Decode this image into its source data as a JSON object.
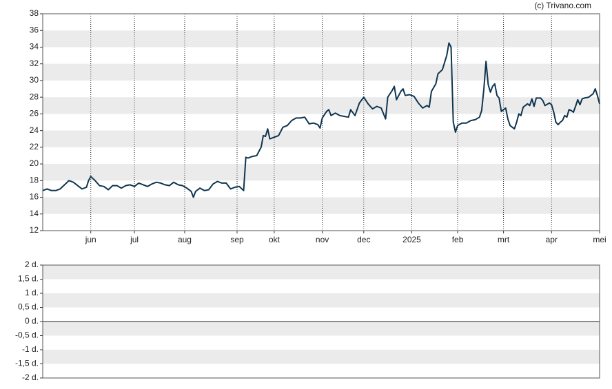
{
  "chart_data": [
    {
      "type": "line",
      "annotation": "(c) Trivano.com",
      "x": [
        0,
        2,
        4,
        6,
        8,
        10,
        12,
        14,
        16,
        18,
        20,
        21,
        22,
        24,
        26,
        28,
        30,
        32,
        34,
        36,
        38,
        40,
        42,
        44,
        46,
        48,
        50,
        52,
        54,
        56,
        58,
        60,
        62,
        64,
        66,
        68,
        69,
        70,
        72,
        74,
        76,
        78,
        80,
        82,
        84,
        86,
        88,
        90,
        92,
        93,
        94,
        96,
        98,
        100,
        101,
        102,
        103,
        104,
        106,
        108,
        110,
        112,
        114,
        116,
        118,
        120,
        122,
        124,
        126,
        127,
        128,
        130,
        131,
        132,
        134,
        136,
        138,
        140,
        141,
        143,
        145,
        147,
        149,
        151,
        153,
        155,
        157,
        158,
        160,
        161,
        162,
        164,
        165,
        166,
        168,
        170,
        172,
        174,
        176,
        177,
        178,
        180,
        181,
        183,
        185,
        186,
        187,
        188,
        189,
        190,
        192,
        194,
        196,
        198,
        200,
        201,
        202,
        203,
        204,
        205,
        206,
        207,
        208,
        209,
        210,
        211,
        212,
        213,
        214,
        215,
        216,
        217,
        218,
        219,
        220,
        222,
        223,
        224,
        225,
        226,
        228,
        229,
        230,
        232,
        233,
        234,
        235,
        236,
        237,
        238,
        239,
        240,
        241,
        242,
        243,
        244,
        245,
        246,
        247,
        248,
        250,
        251,
        252,
        253,
        254,
        255
      ],
      "color": "#0f3550",
      "values": [
        16.8,
        17.0,
        16.8,
        16.8,
        17.0,
        17.5,
        18.0,
        17.8,
        17.4,
        17.0,
        17.2,
        18.0,
        18.5,
        18.0,
        17.4,
        17.3,
        16.9,
        17.4,
        17.4,
        17.1,
        17.4,
        17.5,
        17.3,
        17.7,
        17.5,
        17.3,
        17.6,
        17.8,
        17.7,
        17.5,
        17.4,
        17.8,
        17.5,
        17.4,
        17.1,
        16.7,
        16.0,
        16.7,
        17.1,
        16.8,
        16.9,
        17.6,
        17.9,
        17.7,
        17.7,
        17.0,
        17.2,
        17.3,
        16.8,
        20.8,
        20.7,
        20.9,
        21.0,
        22.0,
        23.4,
        23.3,
        24.2,
        23.0,
        23.2,
        23.4,
        24.4,
        24.6,
        25.2,
        25.5,
        25.5,
        25.6,
        24.8,
        24.9,
        24.7,
        24.3,
        25.5,
        26.3,
        26.5,
        25.8,
        26.1,
        25.8,
        25.7,
        25.6,
        26.5,
        25.8,
        27.3,
        28.0,
        27.2,
        26.6,
        26.9,
        26.7,
        25.4,
        28.0,
        28.8,
        29.3,
        27.7,
        28.7,
        29.0,
        28.2,
        28.3,
        28.1,
        27.3,
        26.7,
        27.0,
        26.8,
        28.7,
        29.6,
        30.8,
        31.3,
        33.0,
        34.5,
        34.0,
        25.0,
        23.8,
        24.6,
        24.9,
        24.9,
        25.2,
        25.3,
        25.6,
        26.4,
        29.0,
        32.3,
        29.5,
        28.6,
        29.3,
        29.6,
        28.2,
        27.9,
        26.3,
        26.5,
        26.7,
        25.4,
        24.6,
        24.4,
        24.2,
        25.0,
        26.0,
        25.8,
        26.8,
        27.2,
        27.0,
        27.8,
        26.9,
        27.9,
        27.9,
        27.6,
        27.0,
        27.3,
        27.1,
        26.2,
        25.0,
        24.7,
        25.0,
        25.2,
        25.8,
        25.6,
        26.5,
        26.4,
        26.2,
        26.9,
        27.7,
        27.1,
        27.8,
        27.9,
        28.0,
        28.2,
        28.4,
        29.0,
        28.2,
        27.2
      ],
      "xlim": [
        0,
        255
      ],
      "xticks": [
        {
          "value": 22,
          "label": "jun"
        },
        {
          "value": 42,
          "label": "jul"
        },
        {
          "value": 65,
          "label": "aug"
        },
        {
          "value": 89,
          "label": "sep"
        },
        {
          "value": 106,
          "label": "okt"
        },
        {
          "value": 128,
          "label": "nov"
        },
        {
          "value": 147,
          "label": "dec"
        },
        {
          "value": 169,
          "label": "2025"
        },
        {
          "value": 190,
          "label": "feb"
        },
        {
          "value": 211,
          "label": "mrt"
        },
        {
          "value": 233,
          "label": "apr"
        },
        {
          "value": 255,
          "label": "mei"
        }
      ],
      "ylim": [
        12,
        38
      ],
      "yticks": [
        12,
        14,
        16,
        18,
        20,
        22,
        24,
        26,
        28,
        30,
        32,
        34,
        36,
        38
      ],
      "grid": true
    },
    {
      "type": "bar",
      "ylim": [
        -2,
        2
      ],
      "yticks": [
        {
          "value": 2,
          "label": "2 d."
        },
        {
          "value": 1.5,
          "label": "1,5 d."
        },
        {
          "value": 1,
          "label": "1 d."
        },
        {
          "value": 0.5,
          "label": "0,5 d."
        },
        {
          "value": 0,
          "label": "0 d."
        },
        {
          "value": -0.5,
          "label": "-0,5 d."
        },
        {
          "value": -1,
          "label": "-1 d."
        },
        {
          "value": -1.5,
          "label": "-1,5 d."
        },
        {
          "value": -2,
          "label": "-2 d."
        }
      ],
      "grid": true
    }
  ]
}
